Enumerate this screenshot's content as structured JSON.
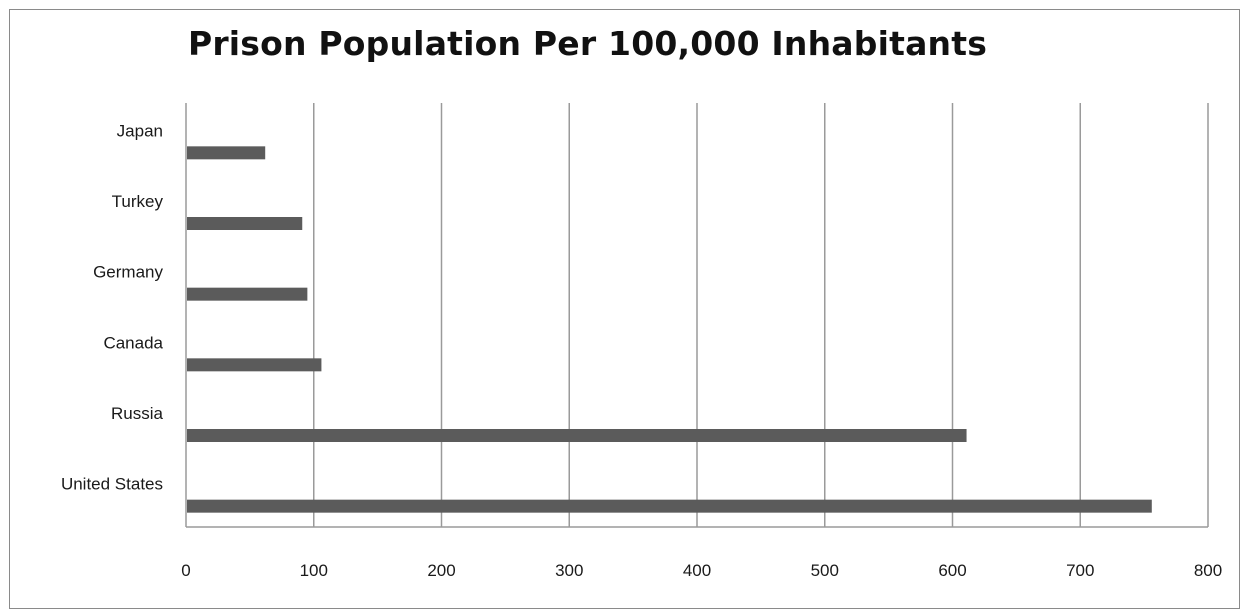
{
  "chart_data": {
    "type": "bar",
    "orientation": "horizontal",
    "title": "Prison Population Per 100,000 Inhabitants",
    "categories": [
      "Japan",
      "Turkey",
      "Germany",
      "Canada",
      "Russia",
      "United States"
    ],
    "values": [
      62,
      91,
      95,
      106,
      611,
      756
    ],
    "xlim": [
      0,
      800
    ],
    "x_ticks": [
      "0",
      "100",
      "200",
      "300",
      "400",
      "500",
      "600",
      "700",
      "800"
    ],
    "grid": "vertical",
    "bar_color": "#5b5b5b"
  }
}
